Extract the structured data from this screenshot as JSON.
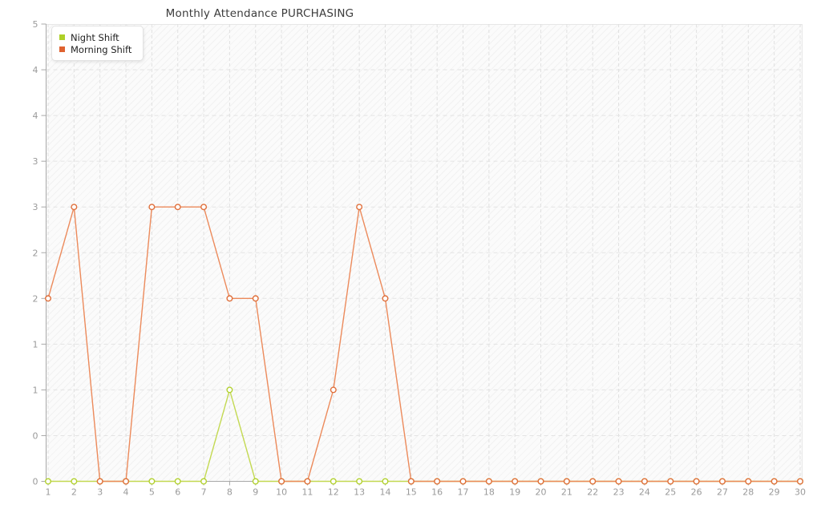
{
  "header": {
    "title": "Monthly Attendance PURCHASING"
  },
  "legend": {
    "position": "top-left",
    "items": [
      {
        "label": "Night Shift",
        "swatch_color": "#aed028"
      },
      {
        "label": "Morning Shift",
        "swatch_color": "#df6230"
      }
    ]
  },
  "chart_data": {
    "type": "line",
    "title": "Monthly Attendance PURCHASING",
    "xlabel": "",
    "ylabel": "",
    "x": [
      1,
      2,
      3,
      4,
      5,
      6,
      7,
      8,
      9,
      10,
      11,
      12,
      13,
      14,
      15,
      16,
      17,
      18,
      19,
      20,
      21,
      22,
      23,
      24,
      25,
      26,
      27,
      28,
      29,
      30
    ],
    "series": [
      {
        "name": "Night Shift",
        "line_color": "#c3d952",
        "marker_color": "#b2d12f",
        "marker": "circle-open",
        "values": [
          0,
          0,
          0,
          0,
          0,
          0,
          0,
          1,
          0,
          0,
          0,
          0,
          0,
          0,
          0,
          0,
          0,
          0,
          0,
          0,
          0,
          0,
          0,
          0,
          0,
          0,
          0,
          0,
          0,
          0
        ]
      },
      {
        "name": "Morning Shift",
        "line_color": "#ec8a5b",
        "marker_color": "#e0703c",
        "marker": "circle-open",
        "values": [
          2,
          3,
          0,
          0,
          3,
          3,
          3,
          2,
          2,
          0,
          0,
          1,
          3,
          2,
          0,
          0,
          0,
          0,
          0,
          0,
          0,
          0,
          0,
          0,
          0,
          0,
          0,
          0,
          0,
          0
        ]
      }
    ],
    "ylim": [
      0,
      5
    ],
    "ytick_step": 0.5,
    "ytick_labels_bottom_to_top": [
      "0",
      "0",
      "1",
      "1",
      "2",
      "2",
      "3",
      "3",
      "4",
      "4",
      "5"
    ],
    "grid": true,
    "grid_style": "dashed",
    "legend_position": "top-left",
    "colors": {
      "axis": "#a8a8a8",
      "grid_vertical": "#e0e0e0",
      "grid_horizontal": "#e3e3e3",
      "tick_label": "#9a9a9a",
      "title": "#3c3c3c",
      "plot_background": "#fbfbfb"
    }
  }
}
